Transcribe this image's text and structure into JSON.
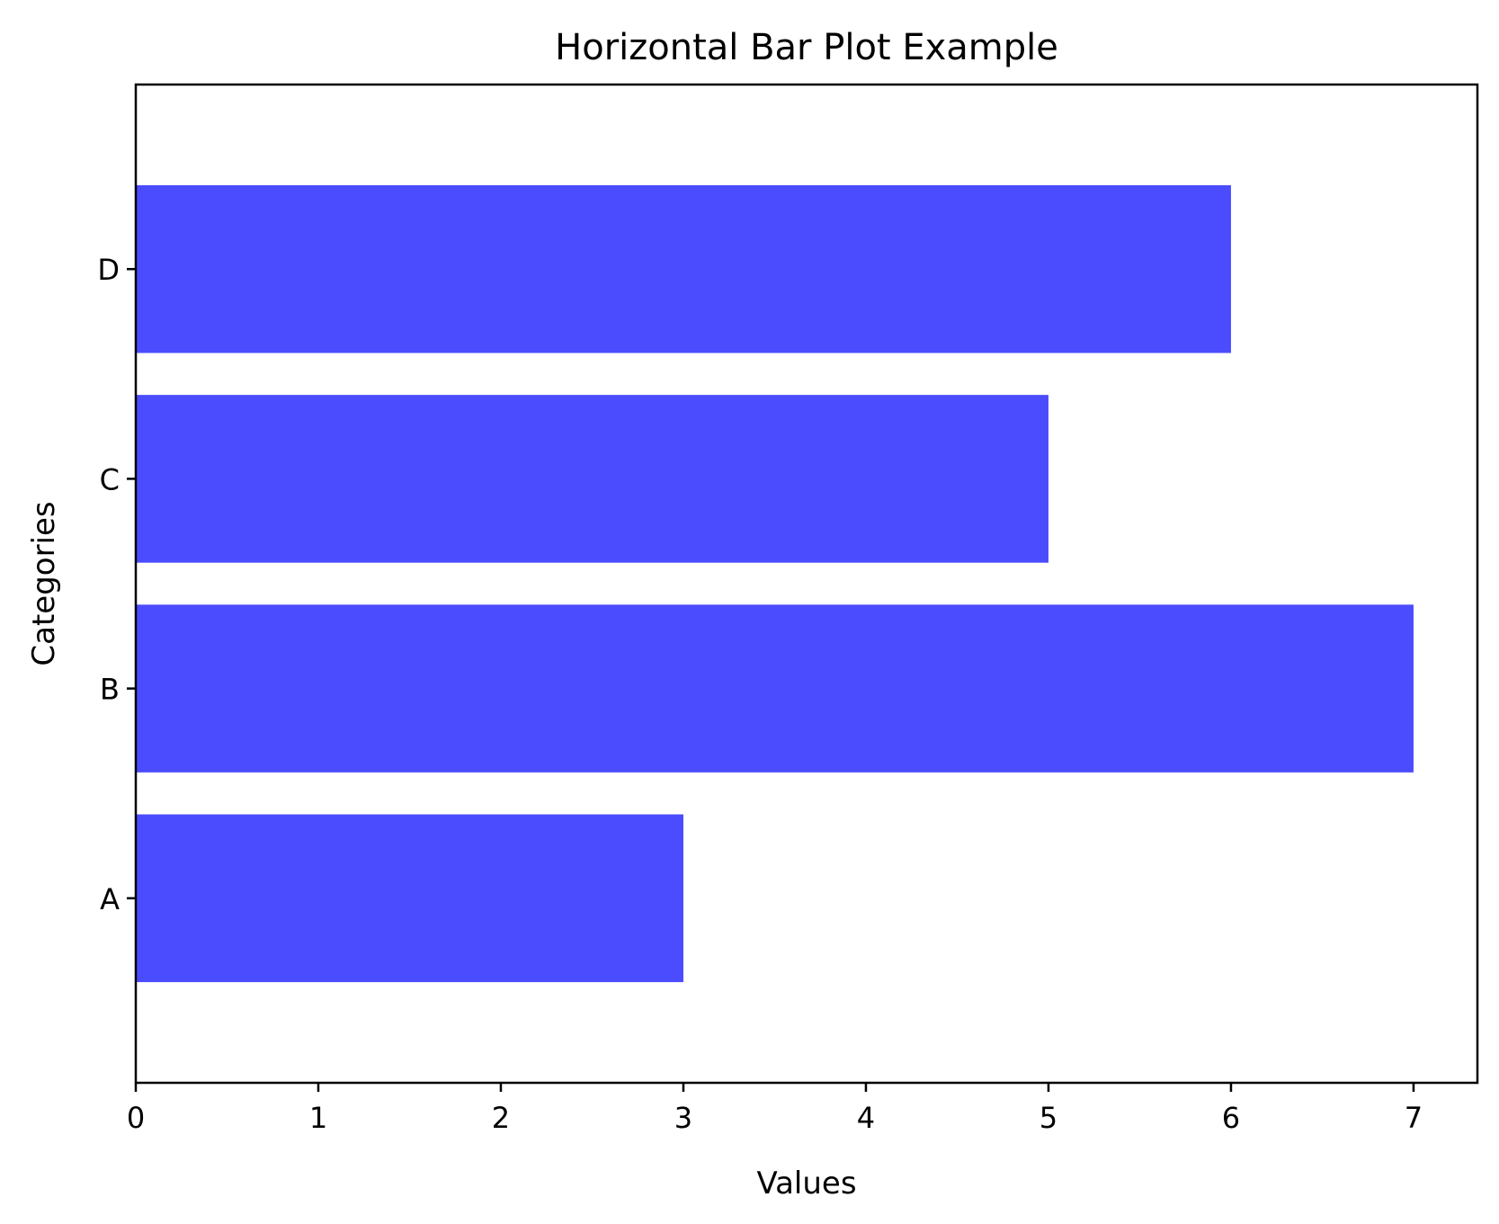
{
  "chart_data": {
    "type": "bar",
    "orientation": "horizontal",
    "title": "Horizontal Bar Plot Example",
    "xlabel": "Values",
    "ylabel": "Categories",
    "categories": [
      "A",
      "B",
      "C",
      "D"
    ],
    "values": [
      3,
      7,
      5,
      6
    ],
    "xlim": [
      0,
      7.35
    ],
    "xticks": [
      0,
      1,
      2,
      3,
      4,
      5,
      6,
      7
    ],
    "bar_color": "#4c4cff",
    "grid": false,
    "legend": false
  }
}
